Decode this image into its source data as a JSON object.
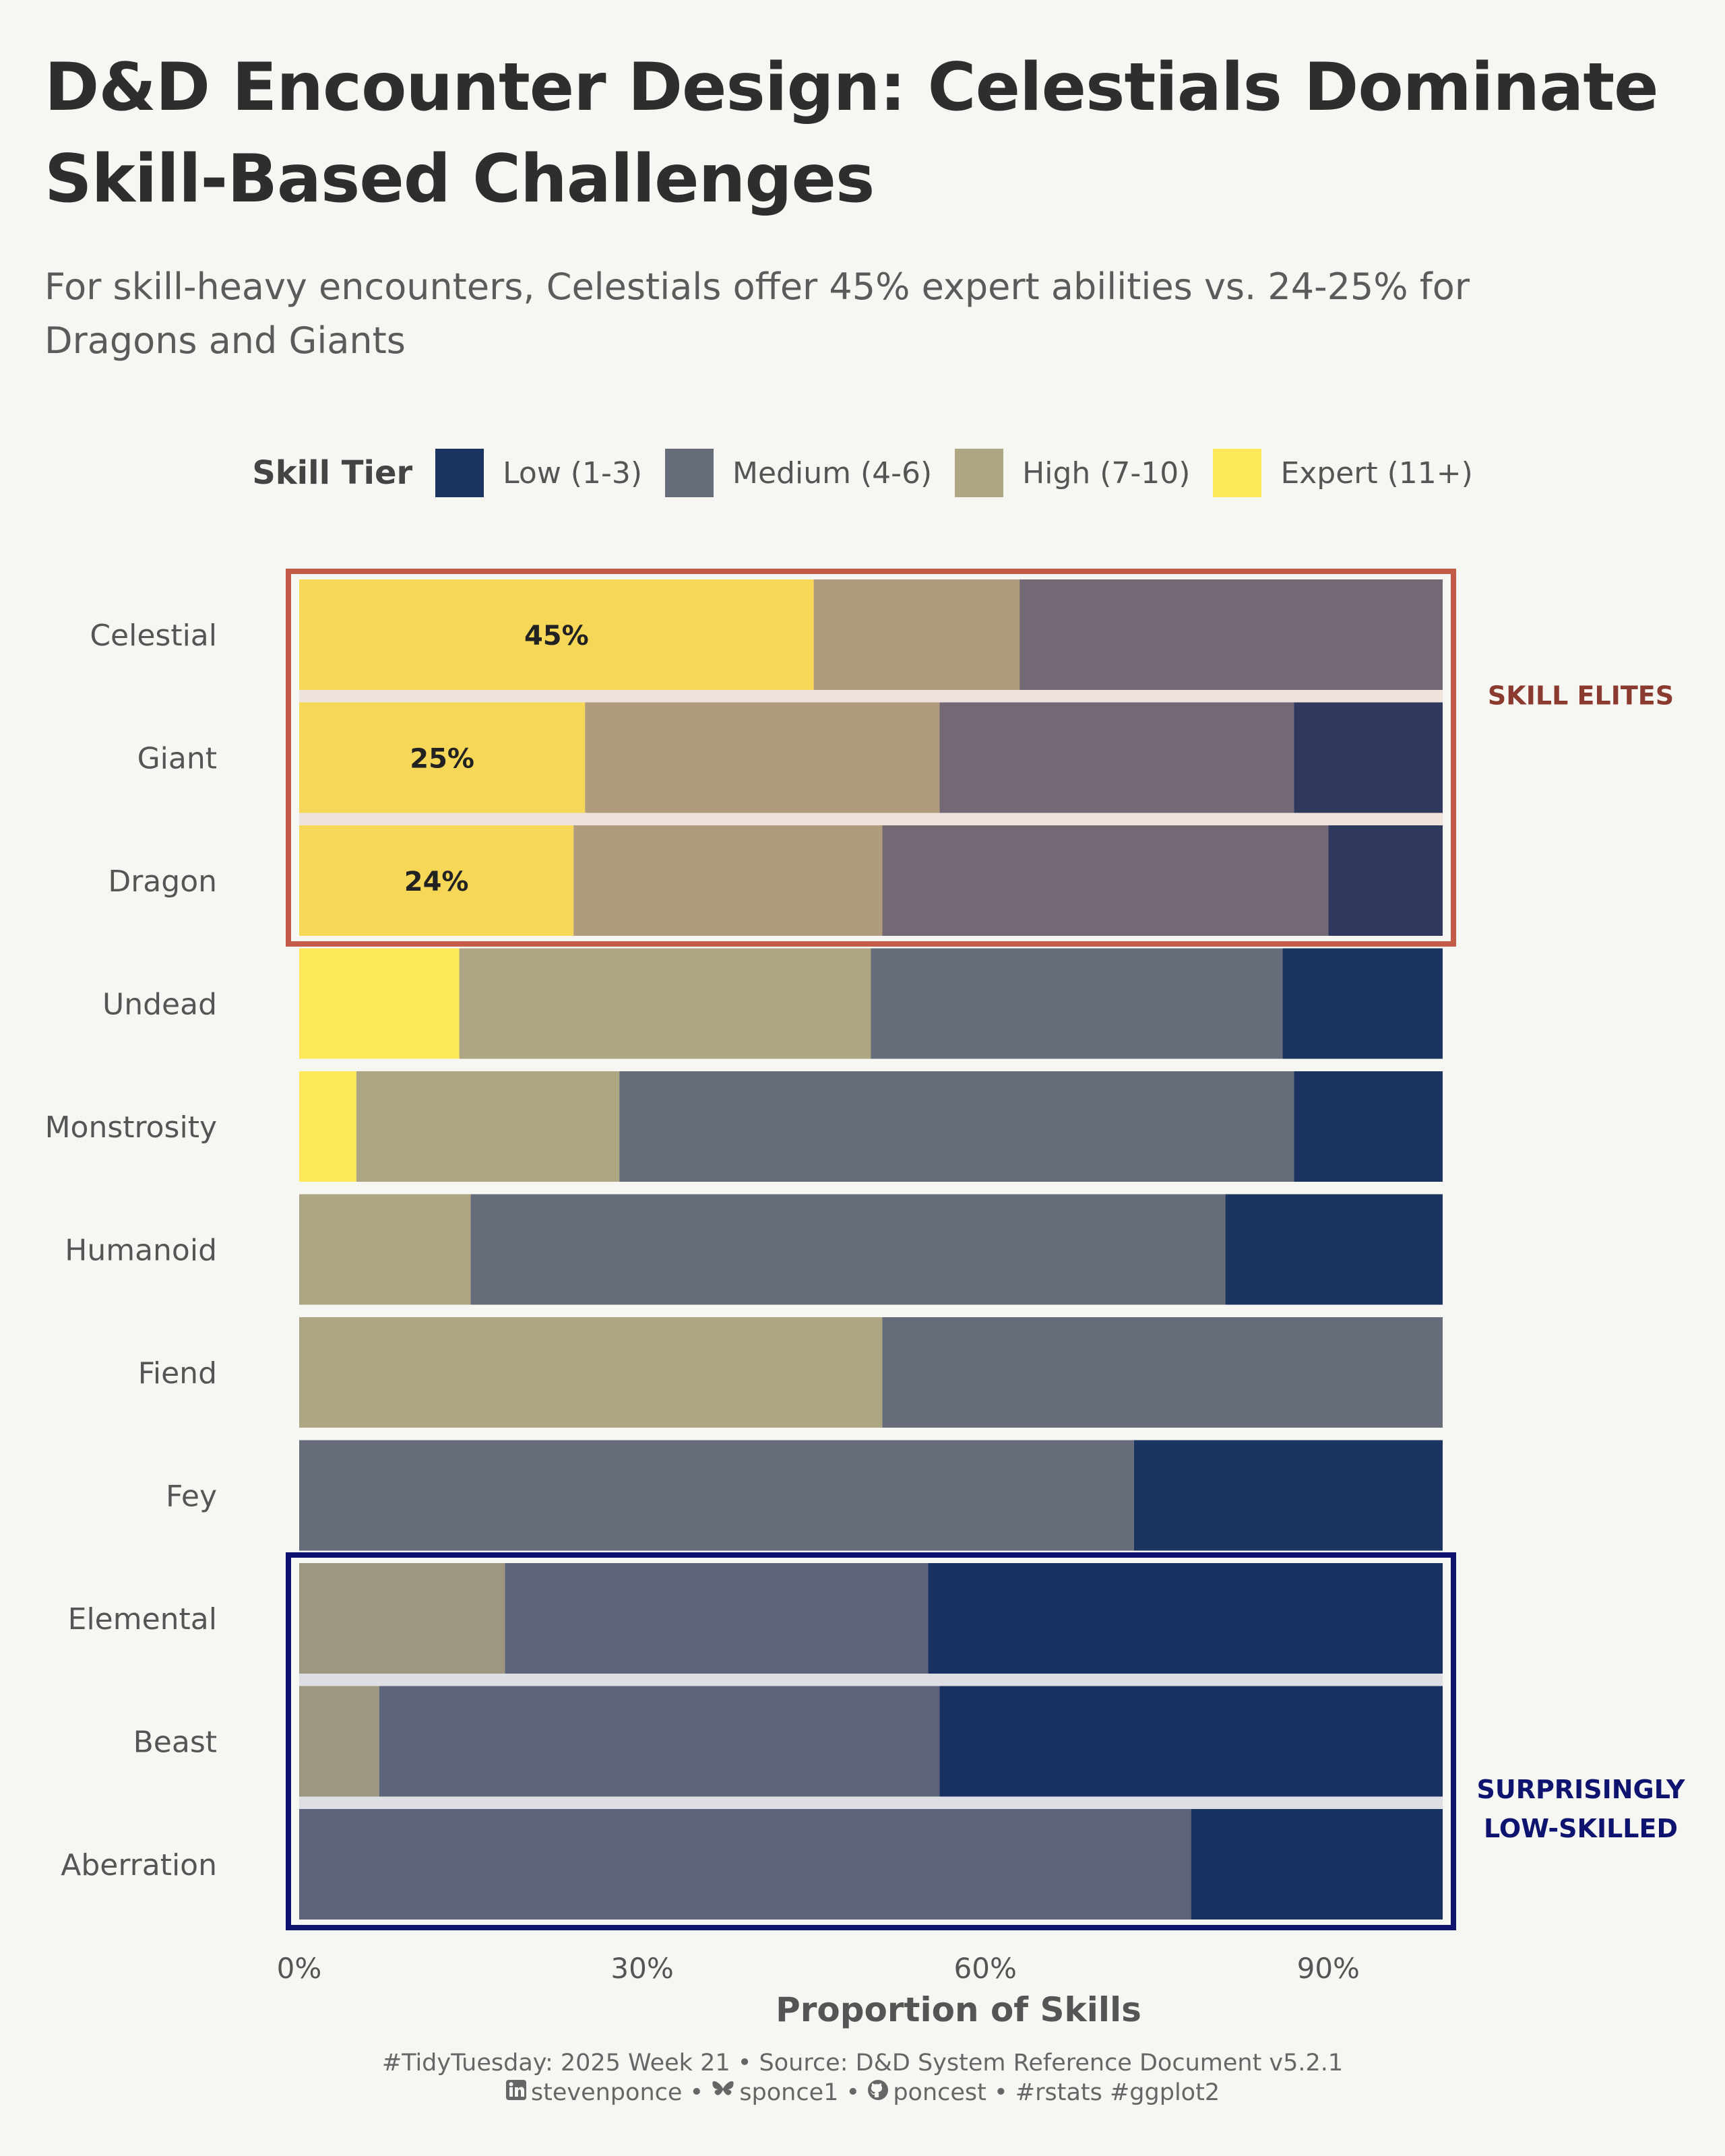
{
  "header": {
    "title": "D&D Encounter Design: Celestials Dominate Skill-Based Challenges",
    "subtitle": "For skill-heavy encounters, Celestials offer 45% expert abilities vs. 24-25% for Dragons and Giants"
  },
  "legend": {
    "title": "Skill Tier",
    "items": [
      {
        "label": "Low (1-3)",
        "color": "#1b3560"
      },
      {
        "label": "Medium (4-6)",
        "color": "#676c7b"
      },
      {
        "label": "High (7-10)",
        "color": "#aea683"
      },
      {
        "label": "Expert (11+)",
        "color": "#fde95a"
      }
    ]
  },
  "chart_data": {
    "type": "bar",
    "orientation": "horizontal",
    "stacked": true,
    "categories": [
      "Celestial",
      "Giant",
      "Dragon",
      "Undead",
      "Monstrosity",
      "Humanoid",
      "Fiend",
      "Fey",
      "Elemental",
      "Beast",
      "Aberration"
    ],
    "series": [
      {
        "name": "Expert (11+)",
        "color": "#fde95a",
        "values": [
          0.45,
          0.25,
          0.24,
          0.14,
          0.05,
          0,
          0,
          0,
          0,
          0,
          0
        ]
      },
      {
        "name": "High (7-10)",
        "color": "#aea683",
        "values": [
          0.18,
          0.31,
          0.27,
          0.36,
          0.23,
          0.15,
          0.51,
          0,
          0.18,
          0.07,
          0
        ]
      },
      {
        "name": "Medium (4-6)",
        "color": "#676c7b",
        "values": [
          0.37,
          0.31,
          0.39,
          0.36,
          0.59,
          0.66,
          0.49,
          0.73,
          0.37,
          0.49,
          0.78
        ]
      },
      {
        "name": "Low (1-3)",
        "color": "#1b3560",
        "values": [
          0,
          0.13,
          0.1,
          0.14,
          0.13,
          0.19,
          0,
          0.27,
          0.45,
          0.44,
          0.22
        ]
      }
    ],
    "data_labels": [
      {
        "category": "Celestial",
        "text": "45%"
      },
      {
        "category": "Giant",
        "text": "25%"
      },
      {
        "category": "Dragon",
        "text": "24%"
      }
    ],
    "xlabel": "Proportion of Skills",
    "ylabel": "",
    "xlim": [
      0,
      1
    ],
    "x_ticks": [
      0,
      0.3,
      0.6,
      0.9
    ],
    "x_tick_labels": [
      "0%",
      "30%",
      "60%",
      "90%"
    ],
    "grid": false,
    "legend_position": "top",
    "highlights": [
      {
        "label": "SKILL ELITES",
        "categories": [
          "Celestial",
          "Giant",
          "Dragon"
        ],
        "color": "#c45a48",
        "text_color": "#8b3a2f"
      },
      {
        "label": "SURPRISINGLY\nLOW-SKILLED",
        "categories": [
          "Elemental",
          "Beast",
          "Aberration"
        ],
        "color": "#0e1370",
        "text_color": "#0e1370"
      }
    ]
  },
  "caption": {
    "line1": "#TidyTuesday: 2025 Week 21 • Source: D&D System Reference Document v5.2.1",
    "linkedin_icon": "linkedin-icon",
    "linkedin": "stevenponce",
    "sep1": " • ",
    "bluesky_icon": "bluesky-icon",
    "bluesky": "sponce1",
    "sep2": " • ",
    "github_icon": "github-icon",
    "github": "poncest",
    "tags": " • #rstats #ggplot2"
  }
}
